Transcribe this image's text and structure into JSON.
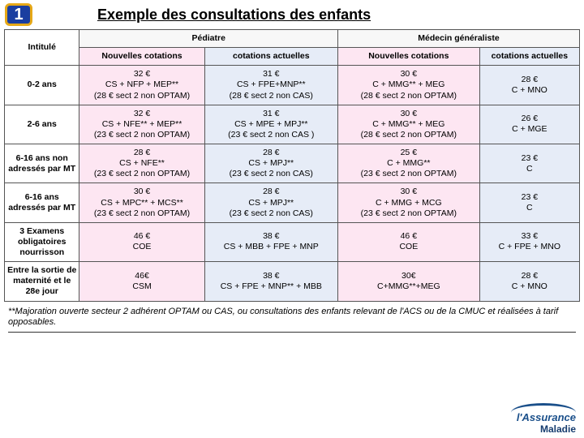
{
  "badge": "1",
  "title": "Exemple des consultations des enfants",
  "header": {
    "intitule": "Intitulé",
    "pediatre": "Pédiatre",
    "generaliste": "Médecin généraliste",
    "nouvelles": "Nouvelles cotations",
    "actuelles": "cotations actuelles"
  },
  "rows": [
    {
      "label": "0-2 ans",
      "ped_nouv": "32 €\nCS + NFP + MEP**\n(28 € sect 2 non OPTAM)",
      "ped_act": "31 €\nCS + FPE+MNP**\n(28 € sect 2 non CAS)",
      "gen_nouv": "30 €\nC + MMG** + MEG\n(28 € sect 2 non OPTAM)",
      "gen_act": "28 €\nC + MNO"
    },
    {
      "label": "2-6 ans",
      "ped_nouv": "32 €\nCS + NFE** + MEP**\n(23 € sect 2 non OPTAM)",
      "ped_act": "31 €\nCS + MPE + MPJ**\n(23 € sect 2 non CAS )",
      "gen_nouv": "30 €\nC + MMG** + MEG\n(28 € sect 2 non OPTAM)",
      "gen_act": "26 €\nC + MGE"
    },
    {
      "label": "6-16 ans non adressés par MT",
      "ped_nouv": "28 €\nCS + NFE**\n(23 € sect 2 non OPTAM)",
      "ped_act": "28 €\nCS + MPJ**\n(23 € sect 2 non CAS)",
      "gen_nouv": "25 €\nC + MMG**\n(23 € sect 2 non OPTAM)",
      "gen_act": "23 €\nC"
    },
    {
      "label": "6-16 ans adressés par MT",
      "ped_nouv": "30 €\nCS + MPC** + MCS**\n(23 € sect 2 non OPTAM)",
      "ped_act": "28 €\nCS + MPJ**\n(23 € sect 2 non CAS)",
      "gen_nouv": "30 €\nC + MMG + MCG\n(23 € sect 2 non OPTAM)",
      "gen_act": "23 €\nC"
    },
    {
      "label": "3 Examens obligatoires nourrisson",
      "ped_nouv": "46 €\nCOE",
      "ped_act": "38 €\nCS + MBB + FPE + MNP",
      "gen_nouv": "46 €\nCOE",
      "gen_act": "33 €\nC + FPE + MNO"
    },
    {
      "label": "Entre la sortie de maternité et le 28e jour",
      "ped_nouv": "46€\nCSM",
      "ped_act": "38 €\nCS + FPE + MNP** + MBB",
      "gen_nouv": "30€\nC+MMG**+MEG",
      "gen_act": "28 €\nC + MNO"
    }
  ],
  "footnote": "**Majoration ouverte secteur 2 adhérent OPTAM ou CAS, ou consultations des enfants relevant de l'ACS ou de la CMUC et réalisées à tarif opposables.",
  "logo": {
    "brand": "l'Assurance",
    "sub": "Maladie"
  },
  "colors": {
    "badge_bg": "#1a3ea0",
    "badge_border": "#e6a817",
    "pink": "#fde6f2",
    "blue": "#e6ecf7"
  }
}
